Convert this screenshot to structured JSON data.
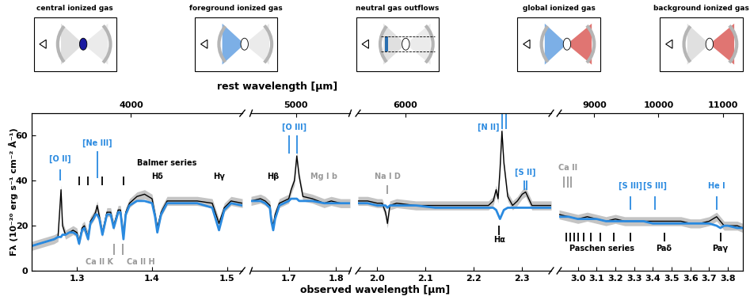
{
  "chart_data": {
    "type": "line",
    "x_label": "observed wavelength [μm]",
    "x2_label": "rest wavelength [μm]",
    "y_label": "Fλ (10⁻²⁰ erg s⁻¹ cm⁻² Å⁻¹)",
    "ylim": [
      0,
      70
    ],
    "yticks": [
      0,
      20,
      40,
      60
    ],
    "insets": [
      "central ionized gas",
      "foreground ionized gas",
      "neutral gas outflows",
      "global ionized gas",
      "background ionized gas"
    ],
    "panels": [
      {
        "xlim": [
          1.24,
          1.52
        ],
        "xticks": [
          1.3,
          1.4,
          1.5
        ],
        "x2ticks": [
          {
            "value": 1.372,
            "label": "4000"
          }
        ],
        "x": [
          1.24,
          1.25,
          1.26,
          1.27,
          1.275,
          1.279,
          1.281,
          1.285,
          1.29,
          1.295,
          1.3,
          1.303,
          1.307,
          1.31,
          1.315,
          1.318,
          1.322,
          1.325,
          1.327,
          1.33,
          1.334,
          1.34,
          1.345,
          1.349,
          1.355,
          1.358,
          1.362,
          1.365,
          1.37,
          1.38,
          1.39,
          1.4,
          1.404,
          1.407,
          1.412,
          1.42,
          1.44,
          1.46,
          1.48,
          1.489,
          1.496,
          1.505,
          1.52
        ],
        "series": [
          {
            "color": "#000000",
            "uncertainty": 2,
            "values": [
              11,
              12,
              13,
              14,
              15,
              36,
              20,
              16,
              17,
              18,
              17,
              13,
              19,
              20,
              15,
              22,
              24,
              26,
              29,
              24,
              17,
              26,
              26,
              20,
              27,
              27,
              16,
              26,
              30,
              33,
              34,
              32,
              25,
              19,
              26,
              31,
              31,
              31,
              30,
              21,
              28,
              31,
              30
            ]
          },
          {
            "color": "#2a8ae0",
            "values": [
              11,
              12,
              13,
              14,
              15,
              15,
              16,
              16,
              17,
              17,
              16,
              12,
              18,
              19,
              14,
              21,
              23,
              25,
              25,
              23,
              16,
              25,
              25,
              19,
              26,
              26,
              14,
              25,
              29,
              31,
              31,
              30,
              24,
              17,
              25,
              30,
              30,
              30,
              28,
              18,
              27,
              30,
              29
            ]
          }
        ]
      },
      {
        "xlim": [
          1.62,
          1.83
        ],
        "xticks": [
          1.7,
          1.8
        ],
        "x2ticks": [
          {
            "value": 1.715,
            "label": "5000"
          }
        ],
        "x": [
          1.62,
          1.64,
          1.65,
          1.66,
          1.663,
          1.667,
          1.671,
          1.68,
          1.69,
          1.7,
          1.705,
          1.712,
          1.717,
          1.722,
          1.73,
          1.75,
          1.775,
          1.79,
          1.81,
          1.83
        ],
        "series": [
          {
            "color": "#000000",
            "uncertainty": 2,
            "values": [
              31,
              32,
              31,
              29,
              23,
              20,
              25,
              30,
              31,
              32,
              36,
              40,
              51,
              42,
              33,
              32,
              30,
              31,
              30,
              30
            ]
          },
          {
            "color": "#2a8ae0",
            "values": [
              31,
              31,
              30,
              28,
              22,
              18,
              23,
              29,
              30,
              31,
              32,
              32,
              32,
              31,
              31,
              31,
              30,
              30,
              30,
              30
            ]
          }
        ]
      },
      {
        "xlim": [
          1.96,
          2.36
        ],
        "xticks": [
          2.0,
          2.1,
          2.2,
          2.3
        ],
        "x2ticks": [
          {
            "value": 2.058,
            "label": "6000"
          }
        ],
        "x": [
          1.96,
          1.98,
          2.0,
          2.01,
          2.017,
          2.021,
          2.026,
          2.04,
          2.08,
          2.12,
          2.16,
          2.2,
          2.23,
          2.24,
          2.246,
          2.25,
          2.254,
          2.258,
          2.262,
          2.27,
          2.28,
          2.29,
          2.3,
          2.307,
          2.32,
          2.36
        ],
        "series": [
          {
            "color": "#000000",
            "uncertainty": 2,
            "values": [
              31,
              31,
              30,
              30,
              26,
              21,
              29,
              30,
              29,
              29,
              29,
              29,
              29,
              31,
              36,
              32,
              45,
              62,
              48,
              33,
              29,
              31,
              34,
              35,
              29,
              29
            ]
          },
          {
            "color": "#2a8ae0",
            "values": [
              30,
              30,
              29,
              29,
              29,
              28,
              29,
              29,
              29,
              28,
              28,
              28,
              28,
              28,
              27,
              25,
              23,
              25,
              27,
              28,
              28,
              28,
              28,
              28,
              28,
              28
            ]
          }
        ]
      },
      {
        "xlim": [
          2.9,
          3.88
        ],
        "xticks": [
          3.0,
          3.1,
          3.2,
          3.3,
          3.4,
          3.5,
          3.6,
          3.7,
          3.8
        ],
        "x2ticks": [
          {
            "value": 3.087,
            "label": "9000"
          },
          {
            "value": 3.43,
            "label": "10000"
          },
          {
            "value": 3.773,
            "label": "11000"
          }
        ],
        "x": [
          2.9,
          2.95,
          3.0,
          3.05,
          3.1,
          3.15,
          3.2,
          3.25,
          3.3,
          3.35,
          3.4,
          3.45,
          3.5,
          3.55,
          3.6,
          3.65,
          3.7,
          3.74,
          3.76,
          3.78,
          3.8,
          3.85,
          3.88
        ],
        "series": [
          {
            "color": "#000000",
            "uncertainty": 2,
            "values": [
              25,
              24,
              23,
              24,
              23,
              22,
              23,
              22,
              22,
              22,
              22,
              22,
              22,
              22,
              21,
              21,
              22,
              24,
              22,
              20,
              20,
              20,
              19
            ]
          },
          {
            "color": "#2a8ae0",
            "values": [
              24,
              24,
              23,
              23,
              23,
              22,
              22,
              22,
              22,
              22,
              21,
              21,
              21,
              21,
              21,
              21,
              21,
              20,
              19,
              20,
              20,
              19,
              19
            ]
          }
        ]
      }
    ],
    "annotations": [
      {
        "text": "[O II]",
        "x": 1.278,
        "y": 48,
        "color": "#2a8ae0",
        "ticks": [
          1.278
        ],
        "tick_y": [
          40,
          45
        ]
      },
      {
        "text": "[Ne III]",
        "x": 1.327,
        "y": 55,
        "color": "#2a8ae0",
        "ticks": [
          1.327
        ],
        "tick_y": [
          41,
          53
        ]
      },
      {
        "text": "Balmer series",
        "x": 1.42,
        "y": 46,
        "color": "#000000",
        "ticks": [
          1.303,
          1.315,
          1.334,
          1.362
        ],
        "tick_y": [
          38,
          42
        ]
      },
      {
        "text": "Hδ",
        "x": 1.407,
        "y": 40,
        "color": "#000000",
        "ticks": [],
        "tick_y": [
          38,
          42
        ]
      },
      {
        "text": "Hγ",
        "x": 1.489,
        "y": 40,
        "color": "#000000",
        "ticks": [],
        "tick_y": [
          38,
          42
        ]
      },
      {
        "text": "Ca II K",
        "x": 1.33,
        "y": 2,
        "color": "#999999",
        "ticks": [
          1.349
        ],
        "tick_y": [
          7,
          12
        ]
      },
      {
        "text": "Ca II H",
        "x": 1.385,
        "y": 2,
        "color": "#999999",
        "ticks": [
          1.361
        ],
        "tick_y": [
          7,
          12
        ]
      },
      {
        "text": "Hβ",
        "x": 1.667,
        "y": 40,
        "color": "#000000",
        "ticks": [],
        "tick_y": [
          38,
          42
        ]
      },
      {
        "text": "[O III]",
        "x": 1.712,
        "y": 62,
        "color": "#2a8ae0",
        "ticks": [
          1.701,
          1.717
        ],
        "tick_y": [
          52,
          60
        ]
      },
      {
        "text": "Mg I b",
        "x": 1.775,
        "y": 40,
        "color": "#999999",
        "ticks": [],
        "tick_y": [
          35,
          38
        ]
      },
      {
        "text": "Na I D",
        "x": 2.021,
        "y": 40,
        "color": "#999999",
        "ticks": [
          2.021
        ],
        "tick_y": [
          34,
          38
        ]
      },
      {
        "text": "[N II]",
        "x": 2.23,
        "y": 62,
        "color": "#2a8ae0",
        "ticks": [
          2.258,
          2.267
        ],
        "tick_y": [
          63,
          70
        ]
      },
      {
        "text": "Hα",
        "x": 2.252,
        "y": 12,
        "color": "#000000",
        "ticks": [
          2.252
        ],
        "tick_y": [
          16,
          20
        ]
      },
      {
        "text": "[S II]",
        "x": 2.306,
        "y": 42,
        "color": "#2a8ae0",
        "ticks": [
          2.304,
          2.309
        ],
        "tick_y": [
          36,
          40
        ]
      },
      {
        "text": "Ca II",
        "x": 2.945,
        "y": 44,
        "color": "#999999",
        "ticks": [
          2.925,
          2.945,
          2.965
        ],
        "tick_y": [
          37,
          42
        ]
      },
      {
        "text": "[S III]",
        "x": 3.28,
        "y": 36,
        "color": "#2a8ae0",
        "ticks": [
          3.28
        ],
        "tick_y": [
          27,
          33
        ]
      },
      {
        "text": "[S III]",
        "x": 3.41,
        "y": 36,
        "color": "#2a8ae0",
        "ticks": [
          3.41
        ],
        "tick_y": [
          27,
          33
        ]
      },
      {
        "text": "He I",
        "x": 3.74,
        "y": 36,
        "color": "#2a8ae0",
        "ticks": [
          3.74
        ],
        "tick_y": [
          27,
          33
        ]
      },
      {
        "text": "Paschen series",
        "x": 3.13,
        "y": 8,
        "color": "#000000",
        "ticks": [
          2.94,
          2.96,
          2.98,
          3.0,
          3.03,
          3.07,
          3.12,
          3.19,
          3.28
        ],
        "tick_y": [
          13,
          17
        ]
      },
      {
        "text": "Paδ",
        "x": 3.46,
        "y": 8,
        "color": "#000000",
        "ticks": [
          3.46
        ],
        "tick_y": [
          13,
          17
        ]
      },
      {
        "text": "Paγ",
        "x": 3.76,
        "y": 8,
        "color": "#000000",
        "ticks": [
          3.76
        ],
        "tick_y": [
          13,
          17
        ]
      }
    ]
  }
}
